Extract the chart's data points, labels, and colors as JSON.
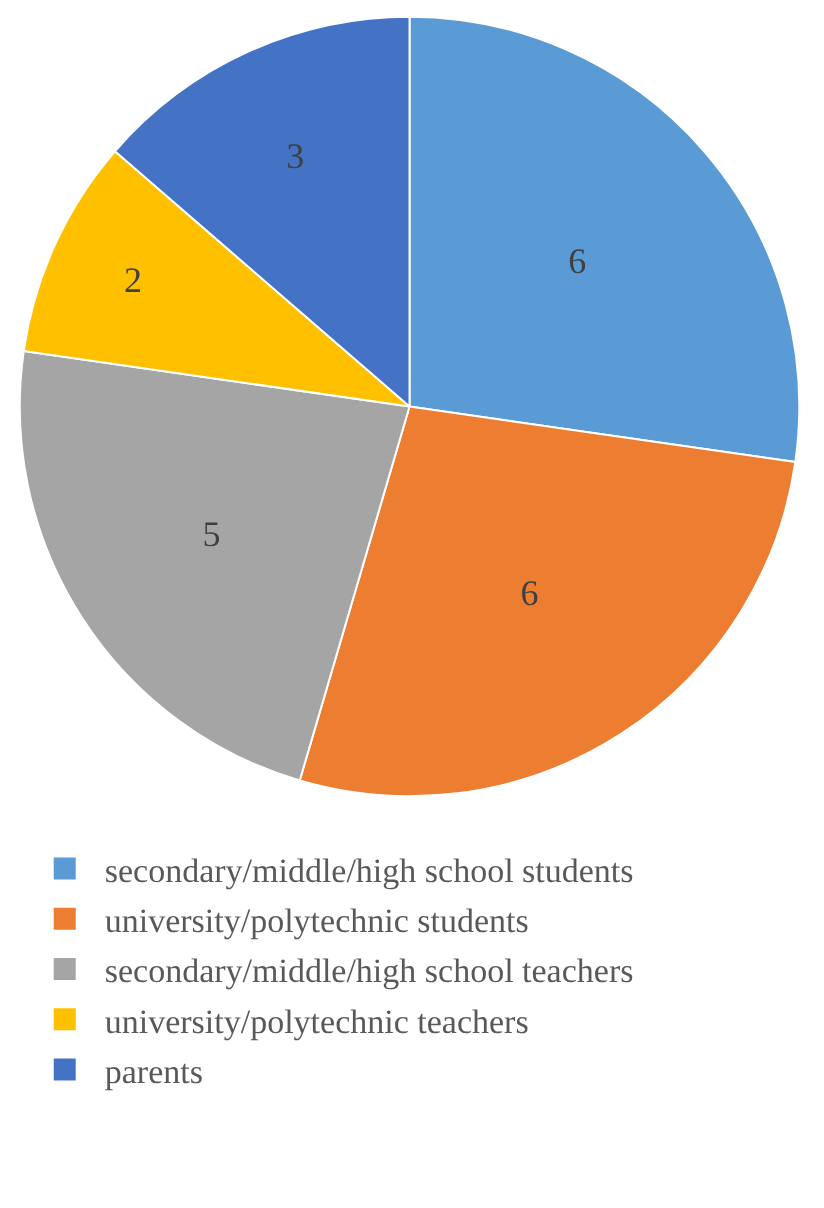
{
  "chart_data": {
    "type": "pie",
    "categories": [
      "secondary/middle/high school students",
      "university/polytechnic students",
      "secondary/middle/high school teachers",
      "university/polytechnic teachers",
      "parents"
    ],
    "values": [
      6,
      6,
      5,
      2,
      3
    ],
    "colors": [
      "#5b9bd5",
      "#ed7d31",
      "#a5a5a5",
      "#ffc000",
      "#4472c4"
    ],
    "data_labels": true,
    "legend": "bottom"
  }
}
